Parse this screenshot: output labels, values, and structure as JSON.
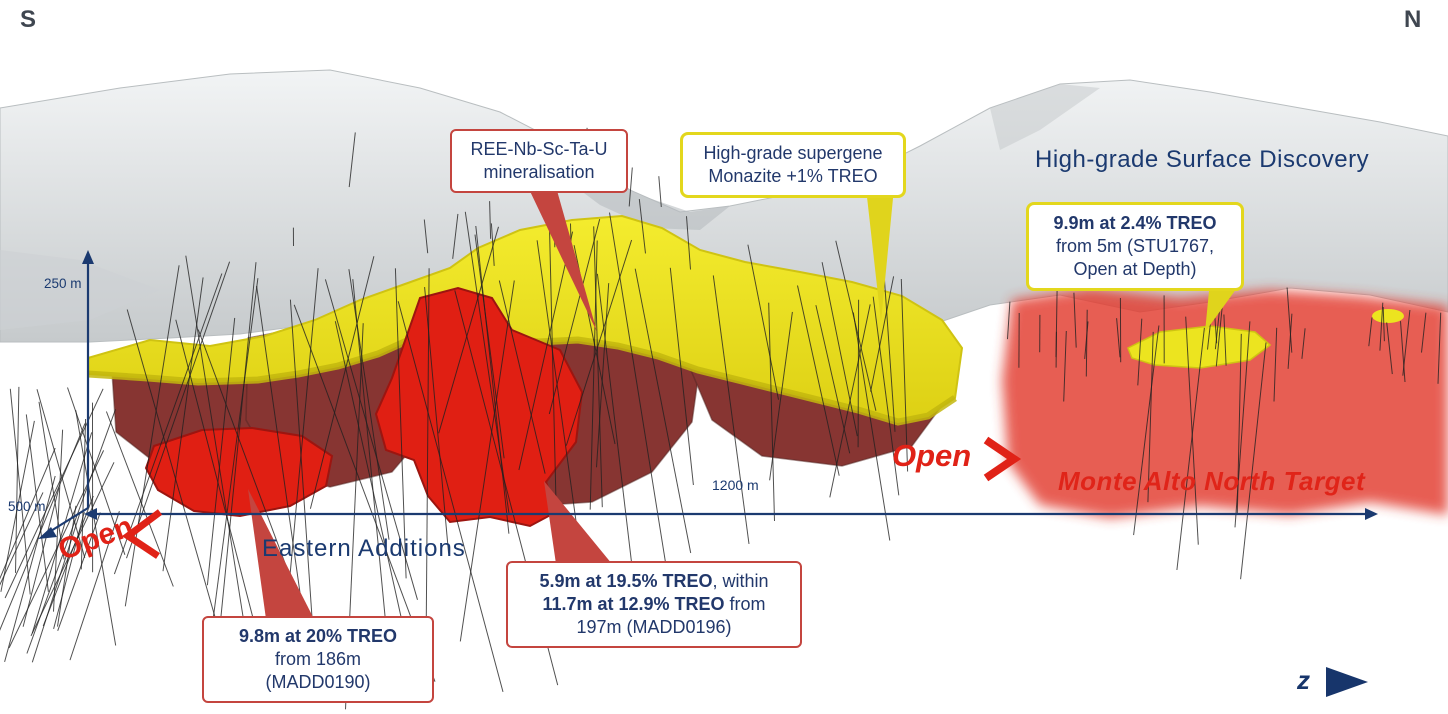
{
  "compass": {
    "south": "S",
    "north": "N"
  },
  "callouts": {
    "mineralisation": {
      "line1": "REE-Nb-Sc-Ta-U",
      "line2": "mineralisation"
    },
    "supergene": {
      "line1": "High-grade supergene",
      "line2": "Monazite +1% TREO"
    },
    "stu1767": {
      "line1_bold": "9.9m at 2.4% TREO",
      "line2": "from 5m (STU1767,",
      "line3": "Open at Depth)"
    },
    "madd0190": {
      "line1_bold": "9.8m at 20% TREO",
      "line2": "from 186m",
      "line3": "(MADD0190)"
    },
    "madd0196": {
      "line1_bold": "5.9m at 19.5% TREO",
      "line1_rest": ", within",
      "line2_bold": "11.7m at 12.9% TREO",
      "line2_rest": " from",
      "line3": "197m (MADD0196)"
    }
  },
  "labels": {
    "surface_discovery": "High-grade Surface Discovery",
    "eastern_additions": "Eastern Additions",
    "monte_alto_target": "Monte Alto North Target",
    "open_left": "Open",
    "open_right": "Open",
    "z_axis": "z"
  },
  "scale": {
    "vertical": "250 m",
    "depth": "500 m",
    "horizontal": "1200 m"
  },
  "colors": {
    "navy_text": "#1b3a70",
    "red_accent": "#e02217",
    "callout_red_border": "#c4453f",
    "callout_yellow_border": "#e3d71d",
    "supergene_yellow": "#ece41f",
    "mineralisation_maroon": "#7e2623",
    "high_grade_red": "#e01f13",
    "terrain_gray": "#d9dcdd"
  }
}
